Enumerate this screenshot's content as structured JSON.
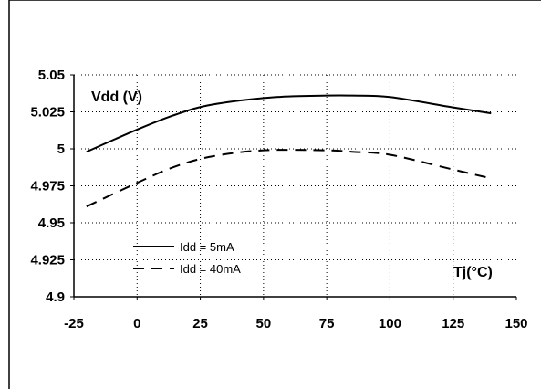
{
  "chart_data": {
    "type": "line",
    "title": "",
    "xlabel": "Tj(°C)",
    "ylabel": "Vdd (V)",
    "xlim": [
      -25,
      150
    ],
    "ylim": [
      4.9,
      5.05
    ],
    "x_ticks": [
      "-25",
      "0",
      "25",
      "50",
      "75",
      "100",
      "125",
      "150"
    ],
    "x_tick_values": [
      -25,
      0,
      25,
      50,
      75,
      100,
      125,
      150
    ],
    "y_ticks": [
      "5.05",
      "5.025",
      "5",
      "4.975",
      "4.95",
      "4.925",
      "4.9"
    ],
    "y_tick_values": [
      5.05,
      5.025,
      5,
      4.975,
      4.95,
      4.925,
      4.9
    ],
    "grid": true,
    "legend_position": "bottom-left",
    "series": [
      {
        "name": "Idd = 5mA",
        "style": "solid",
        "x": [
          -20,
          0,
          15,
          30,
          55,
          75,
          85,
          100,
          125,
          140
        ],
        "y": [
          4.998,
          5.013,
          5.023,
          5.03,
          5.035,
          5.036,
          5.036,
          5.035,
          5.028,
          5.024
        ]
      },
      {
        "name": "Idd = 40mA",
        "style": "dashed",
        "x": [
          -20,
          0,
          15,
          30,
          50,
          75,
          85,
          100,
          125,
          140
        ],
        "y": [
          4.961,
          4.977,
          4.988,
          4.995,
          4.999,
          4.999,
          4.998,
          4.996,
          4.986,
          4.98
        ]
      }
    ]
  }
}
